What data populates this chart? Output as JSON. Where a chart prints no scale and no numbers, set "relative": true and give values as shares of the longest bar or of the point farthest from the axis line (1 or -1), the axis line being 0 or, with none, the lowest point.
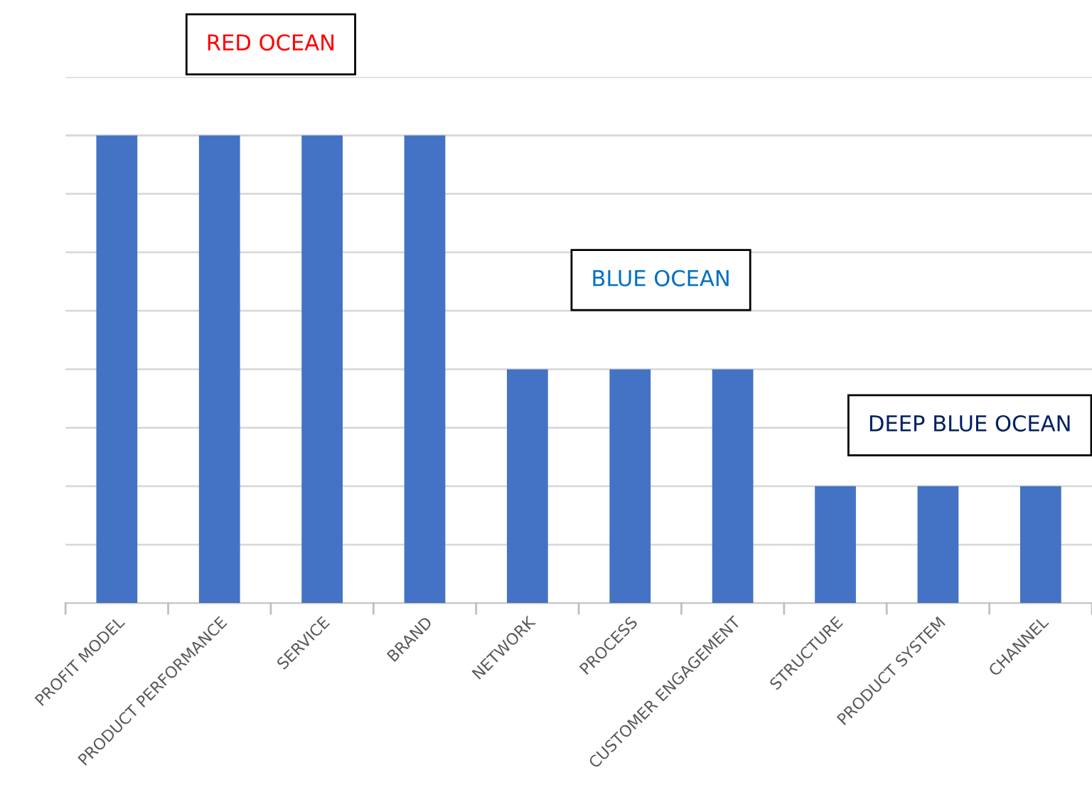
{
  "chart_data": {
    "type": "bar",
    "relative": true,
    "grid": "y",
    "color": "#4472c4",
    "categories": [
      "PROFIT MODEL",
      "PRODUCT PERFORMANCE",
      "SERVICE",
      "BRAND",
      "NETWORK",
      "PROCESS",
      "CUSTOMER ENGAGEMENT",
      "STRUCTURE",
      "PRODUCT SYSTEM",
      "CHANNEL"
    ],
    "values": [
      1,
      1,
      1,
      1,
      0.5,
      0.5,
      0.5,
      0.25,
      0.25,
      0.25
    ],
    "annotations": [
      "RED OCEAN",
      "BLUE OCEAN",
      "DEEP BLUE OCEAN"
    ]
  }
}
